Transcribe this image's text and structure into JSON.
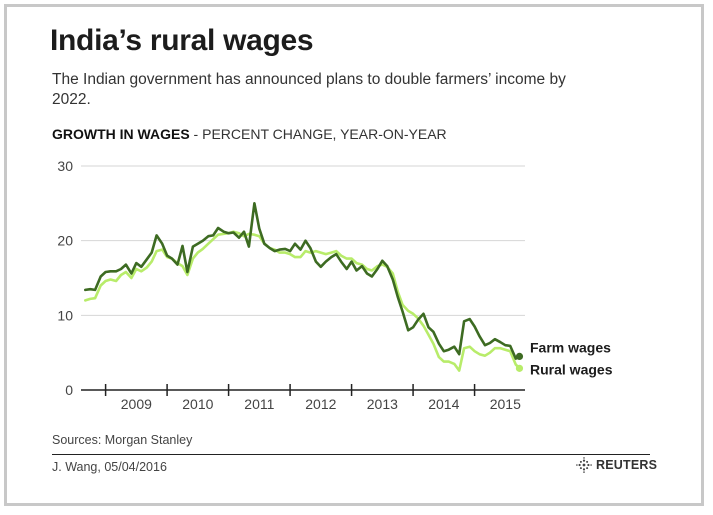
{
  "header": {
    "title": "India’s rural wages",
    "subtitle": "The Indian government has announced plans to double farmers’ income by 2022."
  },
  "chart_heading": {
    "bold": "GROWTH IN WAGES",
    "rest": " - PERCENT CHANGE, YEAR-ON-YEAR"
  },
  "footer": {
    "sources": "Sources: Morgan Stanley",
    "credit": "J. Wang,  05/04/2016",
    "brand": "REUTERS"
  },
  "colors": {
    "farm": "#3d6b22",
    "rural": "#b8ec6a",
    "grid": "#d6d6d6",
    "axis": "#222222"
  },
  "chart_data": {
    "type": "line",
    "title": "",
    "xlabel": "",
    "ylabel": "",
    "ylim": [
      0,
      30
    ],
    "xlim": [
      2008.6,
      2015.82
    ],
    "yticks": [
      "0",
      "10",
      "20",
      "30"
    ],
    "xtick_labels": [
      "2009",
      "2010",
      "2011",
      "2012",
      "2013",
      "2014",
      "2015"
    ],
    "grid": "horizontal",
    "legend": "labels at line ends (right)",
    "series": [
      {
        "name": "Farm wages",
        "color_key": "farm",
        "points": [
          [
            2008.67,
            13.4
          ],
          [
            2008.75,
            13.5
          ],
          [
            2008.83,
            13.4
          ],
          [
            2008.92,
            15.2
          ],
          [
            2009.0,
            15.8
          ],
          [
            2009.08,
            15.9
          ],
          [
            2009.17,
            15.9
          ],
          [
            2009.25,
            16.2
          ],
          [
            2009.33,
            16.8
          ],
          [
            2009.42,
            15.6
          ],
          [
            2009.5,
            17.0
          ],
          [
            2009.58,
            16.5
          ],
          [
            2009.67,
            17.5
          ],
          [
            2009.75,
            18.4
          ],
          [
            2009.83,
            20.7
          ],
          [
            2009.92,
            19.6
          ],
          [
            2010.0,
            18.0
          ],
          [
            2010.08,
            17.6
          ],
          [
            2010.17,
            16.8
          ],
          [
            2010.25,
            19.3
          ],
          [
            2010.33,
            15.8
          ],
          [
            2010.42,
            19.2
          ],
          [
            2010.5,
            19.6
          ],
          [
            2010.58,
            20.0
          ],
          [
            2010.67,
            20.6
          ],
          [
            2010.75,
            20.7
          ],
          [
            2010.83,
            21.7
          ],
          [
            2010.92,
            21.2
          ],
          [
            2011.0,
            21.0
          ],
          [
            2011.08,
            21.1
          ],
          [
            2011.17,
            20.4
          ],
          [
            2011.25,
            21.2
          ],
          [
            2011.33,
            19.2
          ],
          [
            2011.42,
            25.0
          ],
          [
            2011.5,
            21.6
          ],
          [
            2011.58,
            19.6
          ],
          [
            2011.67,
            19.0
          ],
          [
            2011.75,
            18.6
          ],
          [
            2011.83,
            18.8
          ],
          [
            2011.92,
            18.9
          ],
          [
            2012.0,
            18.6
          ],
          [
            2012.08,
            19.6
          ],
          [
            2012.17,
            18.8
          ],
          [
            2012.25,
            20.0
          ],
          [
            2012.33,
            19.0
          ],
          [
            2012.42,
            17.2
          ],
          [
            2012.5,
            16.5
          ],
          [
            2012.58,
            17.2
          ],
          [
            2012.67,
            17.8
          ],
          [
            2012.75,
            18.2
          ],
          [
            2012.83,
            17.2
          ],
          [
            2012.92,
            16.2
          ],
          [
            2013.0,
            17.2
          ],
          [
            2013.08,
            16.0
          ],
          [
            2013.17,
            16.6
          ],
          [
            2013.25,
            15.6
          ],
          [
            2013.33,
            15.2
          ],
          [
            2013.42,
            16.2
          ],
          [
            2013.5,
            17.3
          ],
          [
            2013.58,
            16.6
          ],
          [
            2013.67,
            14.8
          ],
          [
            2013.75,
            12.5
          ],
          [
            2013.83,
            10.5
          ],
          [
            2013.92,
            8.0
          ],
          [
            2014.0,
            8.4
          ],
          [
            2014.08,
            9.4
          ],
          [
            2014.17,
            10.2
          ],
          [
            2014.25,
            8.4
          ],
          [
            2014.33,
            7.8
          ],
          [
            2014.42,
            6.2
          ],
          [
            2014.5,
            5.2
          ],
          [
            2014.58,
            5.4
          ],
          [
            2014.67,
            5.8
          ],
          [
            2014.75,
            4.8
          ],
          [
            2014.83,
            9.2
          ],
          [
            2014.92,
            9.5
          ],
          [
            2015.0,
            8.5
          ],
          [
            2015.08,
            7.2
          ],
          [
            2015.17,
            6.0
          ],
          [
            2015.25,
            6.3
          ],
          [
            2015.33,
            6.8
          ],
          [
            2015.42,
            6.4
          ],
          [
            2015.5,
            6.0
          ],
          [
            2015.58,
            5.9
          ],
          [
            2015.67,
            4.2
          ],
          [
            2015.73,
            4.5
          ]
        ]
      },
      {
        "name": "Rural wages",
        "color_key": "rural",
        "points": [
          [
            2008.67,
            12.0
          ],
          [
            2008.75,
            12.2
          ],
          [
            2008.83,
            12.3
          ],
          [
            2008.92,
            14.0
          ],
          [
            2009.0,
            14.6
          ],
          [
            2009.08,
            14.8
          ],
          [
            2009.17,
            14.6
          ],
          [
            2009.25,
            15.4
          ],
          [
            2009.33,
            15.8
          ],
          [
            2009.42,
            15.0
          ],
          [
            2009.5,
            16.2
          ],
          [
            2009.58,
            15.9
          ],
          [
            2009.67,
            16.4
          ],
          [
            2009.75,
            17.2
          ],
          [
            2009.83,
            18.6
          ],
          [
            2009.92,
            18.8
          ],
          [
            2010.0,
            17.8
          ],
          [
            2010.08,
            17.6
          ],
          [
            2010.17,
            17.0
          ],
          [
            2010.25,
            16.6
          ],
          [
            2010.33,
            15.4
          ],
          [
            2010.42,
            17.6
          ],
          [
            2010.5,
            18.4
          ],
          [
            2010.58,
            18.9
          ],
          [
            2010.67,
            19.6
          ],
          [
            2010.75,
            20.2
          ],
          [
            2010.83,
            20.8
          ],
          [
            2010.92,
            20.9
          ],
          [
            2011.0,
            21.0
          ],
          [
            2011.08,
            21.2
          ],
          [
            2011.17,
            21.0
          ],
          [
            2011.25,
            20.6
          ],
          [
            2011.33,
            20.9
          ],
          [
            2011.42,
            20.8
          ],
          [
            2011.5,
            20.6
          ],
          [
            2011.58,
            19.6
          ],
          [
            2011.67,
            19.0
          ],
          [
            2011.75,
            18.8
          ],
          [
            2011.83,
            18.4
          ],
          [
            2011.92,
            18.4
          ],
          [
            2012.0,
            18.2
          ],
          [
            2012.08,
            17.8
          ],
          [
            2012.17,
            17.8
          ],
          [
            2012.25,
            18.6
          ],
          [
            2012.33,
            18.4
          ],
          [
            2012.42,
            18.6
          ],
          [
            2012.5,
            18.4
          ],
          [
            2012.58,
            18.2
          ],
          [
            2012.67,
            18.4
          ],
          [
            2012.75,
            18.6
          ],
          [
            2012.83,
            18.0
          ],
          [
            2012.92,
            17.6
          ],
          [
            2013.0,
            17.6
          ],
          [
            2013.08,
            17.0
          ],
          [
            2013.17,
            16.8
          ],
          [
            2013.25,
            16.2
          ],
          [
            2013.33,
            16.0
          ],
          [
            2013.42,
            16.6
          ],
          [
            2013.5,
            16.8
          ],
          [
            2013.58,
            16.5
          ],
          [
            2013.67,
            15.6
          ],
          [
            2013.75,
            13.2
          ],
          [
            2013.83,
            11.4
          ],
          [
            2013.92,
            10.6
          ],
          [
            2014.0,
            10.2
          ],
          [
            2014.08,
            9.6
          ],
          [
            2014.17,
            8.6
          ],
          [
            2014.25,
            7.4
          ],
          [
            2014.33,
            6.2
          ],
          [
            2014.42,
            4.4
          ],
          [
            2014.5,
            3.8
          ],
          [
            2014.58,
            3.8
          ],
          [
            2014.67,
            3.5
          ],
          [
            2014.75,
            2.6
          ],
          [
            2014.83,
            5.6
          ],
          [
            2014.92,
            5.8
          ],
          [
            2015.0,
            5.2
          ],
          [
            2015.08,
            4.8
          ],
          [
            2015.17,
            4.6
          ],
          [
            2015.25,
            5.0
          ],
          [
            2015.33,
            5.6
          ],
          [
            2015.42,
            5.6
          ],
          [
            2015.5,
            5.4
          ],
          [
            2015.58,
            5.2
          ],
          [
            2015.67,
            3.4
          ],
          [
            2015.73,
            2.9
          ]
        ]
      }
    ]
  }
}
